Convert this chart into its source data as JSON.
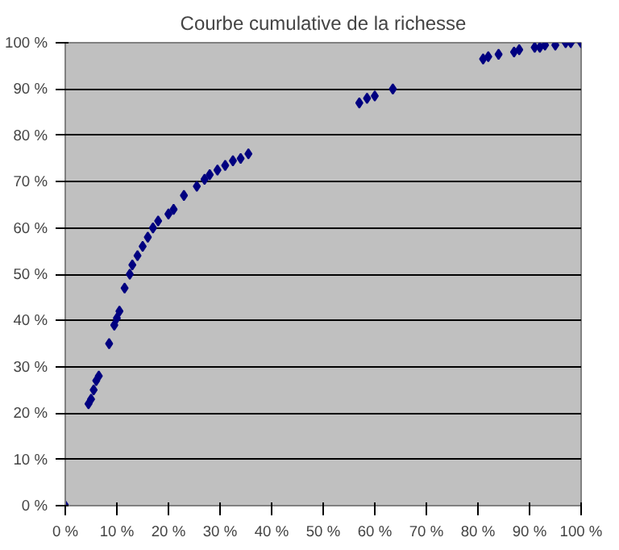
{
  "chart_data": {
    "type": "scatter",
    "title": "Courbe cumulative de la richesse",
    "marker": "diamond",
    "grid": "y",
    "x": [
      0,
      4.5,
      5,
      5.5,
      6,
      6.5,
      8.5,
      9.5,
      10,
      10.5,
      11.5,
      12.5,
      13,
      14,
      15,
      16,
      17,
      18,
      20,
      21,
      23,
      25.5,
      27,
      28,
      29.5,
      31,
      32.5,
      34,
      35.5,
      57,
      58.5,
      60,
      63.5,
      81,
      82,
      84,
      87,
      88,
      91,
      92,
      93,
      95,
      97,
      98,
      100
    ],
    "series": [
      {
        "color": "#000080",
        "values": [
          0,
          22,
          23,
          25,
          27,
          28,
          35,
          39,
          40.5,
          42,
          47,
          50,
          52,
          54,
          56,
          58,
          60,
          61.5,
          63,
          64,
          67,
          69,
          70.5,
          71.5,
          72.5,
          73.5,
          74.5,
          75,
          76,
          87,
          88,
          88.5,
          90,
          96.5,
          97,
          97.5,
          98,
          98.5,
          99,
          99,
          99.5,
          99.5,
          100,
          100,
          100
        ]
      }
    ],
    "xlim": [
      0,
      100
    ],
    "ylim": [
      0,
      100
    ],
    "xticks": [
      {
        "value": 0,
        "label": "0 %"
      },
      {
        "value": 10,
        "label": "10 %"
      },
      {
        "value": 20,
        "label": "20 %"
      },
      {
        "value": 30,
        "label": "30 %"
      },
      {
        "value": 40,
        "label": "40 %"
      },
      {
        "value": 50,
        "label": "50 %"
      },
      {
        "value": 60,
        "label": "60 %"
      },
      {
        "value": 70,
        "label": "70 %"
      },
      {
        "value": 80,
        "label": "80 %"
      },
      {
        "value": 90,
        "label": "90 %"
      },
      {
        "value": 100,
        "label": "100 %"
      }
    ],
    "yticks": [
      {
        "value": 0,
        "label": "0 %"
      },
      {
        "value": 10,
        "label": "10 %"
      },
      {
        "value": 20,
        "label": "20 %"
      },
      {
        "value": 30,
        "label": "30 %"
      },
      {
        "value": 40,
        "label": "40 %"
      },
      {
        "value": 50,
        "label": "50 %"
      },
      {
        "value": 60,
        "label": "60 %"
      },
      {
        "value": 70,
        "label": "70 %"
      },
      {
        "value": 80,
        "label": "80 %"
      },
      {
        "value": 90,
        "label": "90 %"
      },
      {
        "value": 100,
        "label": "100 %"
      }
    ]
  }
}
